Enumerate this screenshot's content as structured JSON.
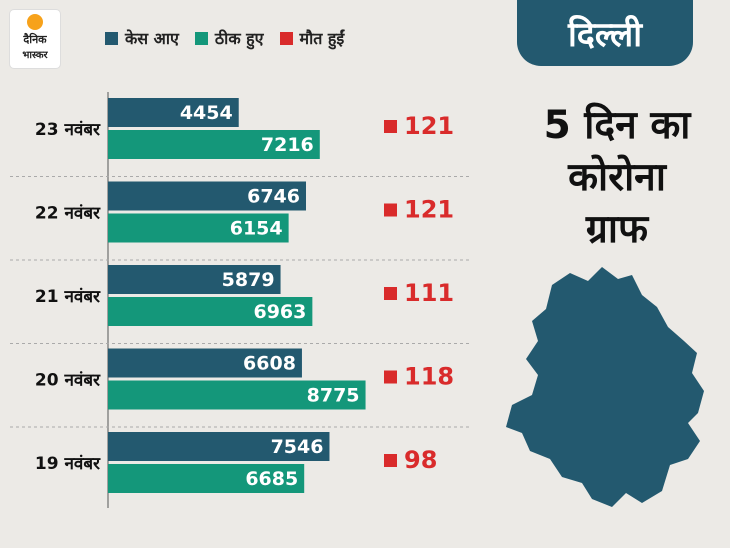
{
  "brand": {
    "line1": "दैनिक",
    "line2": "भास्कर"
  },
  "legend": [
    {
      "label": "केस आए",
      "color": "#23596f"
    },
    {
      "label": "ठीक हुए",
      "color": "#14977a"
    },
    {
      "label": "मौत हुईं",
      "color": "#d92b2b"
    }
  ],
  "panel": {
    "tab": "दिल्ली",
    "headline_lines": [
      "5 दिन का",
      "कोरोना",
      "ग्राफ"
    ]
  },
  "chart_data": {
    "type": "bar",
    "orientation": "horizontal",
    "categories": [
      "23 नवंबर",
      "22 नवंबर",
      "21 नवंबर",
      "20 नवंबर",
      "19 नवंबर"
    ],
    "series": [
      {
        "name": "केस आए",
        "values": [
          4454,
          6746,
          5879,
          6608,
          7546
        ],
        "color": "#23596f"
      },
      {
        "name": "ठीक हुए",
        "values": [
          7216,
          6154,
          6963,
          8775,
          6685
        ],
        "color": "#14977a"
      },
      {
        "name": "मौत हुईं",
        "values": [
          121,
          121,
          111,
          118,
          98
        ],
        "color": "#d92b2b"
      }
    ],
    "legend": "top"
  }
}
